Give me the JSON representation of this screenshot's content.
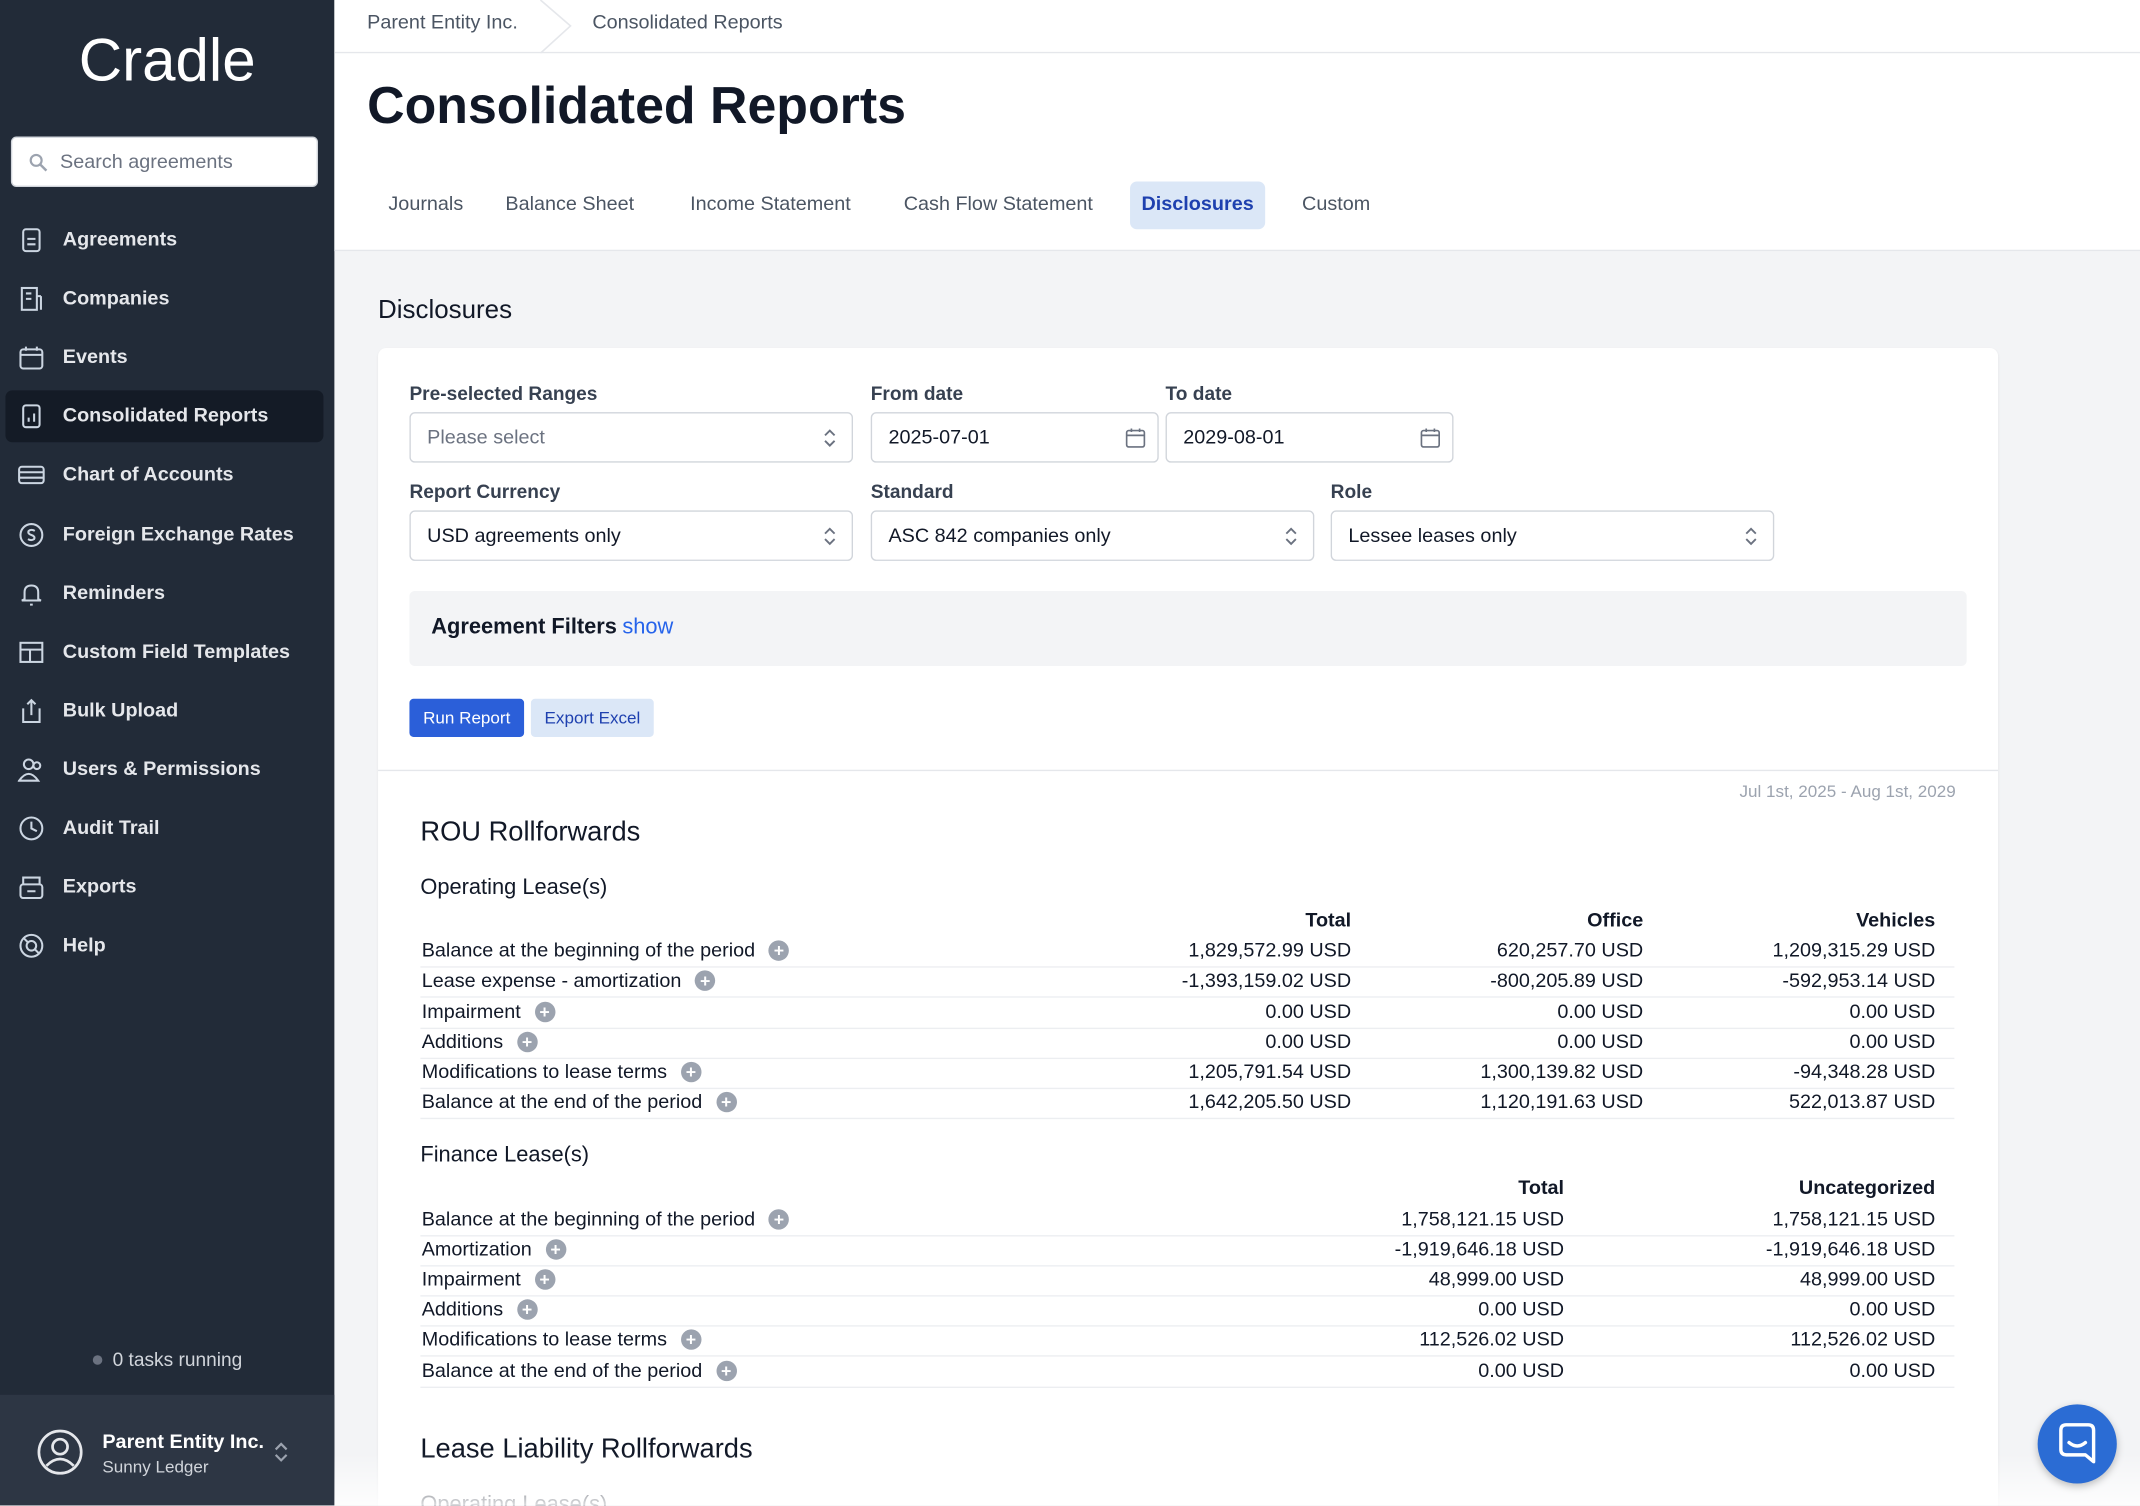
{
  "sidebar": {
    "brand": "Cradle",
    "search_placeholder": "Search agreements",
    "nav": [
      "Agreements",
      "Companies",
      "Events",
      "Consolidated Reports",
      "Chart of Accounts",
      "Foreign Exchange Rates",
      "Reminders",
      "Custom Field Templates",
      "Bulk Upload",
      "Users & Permissions",
      "Audit Trail",
      "Exports",
      "Help"
    ],
    "active_nav": 3,
    "tasks": "0 tasks running",
    "user": {
      "name": "Parent Entity Inc.",
      "subtitle": "Sunny Ledger"
    }
  },
  "breadcrumb": [
    "Parent Entity Inc.",
    "Consolidated Reports"
  ],
  "title": "Consolidated Reports",
  "tabs": [
    "Journals",
    "Balance Sheet",
    "Income Statement",
    "Cash Flow Statement",
    "Disclosures",
    "Custom"
  ],
  "active_tab": 4,
  "section_title": "Disclosures",
  "form": {
    "fields": [
      {
        "label": "Pre-selected Ranges",
        "value": "Please select",
        "kind": "select"
      },
      {
        "label": "From date",
        "value": "2025-07-01",
        "kind": "date"
      },
      {
        "label": "To date",
        "value": "2029-08-01",
        "kind": "date"
      },
      {
        "label": "Report Currency",
        "value": "USD agreements only",
        "kind": "select"
      },
      {
        "label": "Standard",
        "value": "ASC 842 companies only",
        "kind": "select"
      },
      {
        "label": "Role",
        "value": "Lessee leases only",
        "kind": "select"
      }
    ]
  },
  "filters": {
    "title": "Agreement Filters",
    "link": "show"
  },
  "buttons": [
    "Run Report",
    "Export Excel"
  ],
  "report": {
    "date_range": "Jul 1st, 2025 - Aug 1st, 2029",
    "sections": [
      {
        "title": "ROU Rollforwards",
        "tables": [
          {
            "title": "Operating Lease(s)",
            "columns": [
              "Total",
              "Office",
              "Vehicles"
            ],
            "rows": [
              {
                "label": "Balance at the beginning of the period",
                "values": [
                  "1,829,572.99 USD",
                  "620,257.70 USD",
                  "1,209,315.29 USD"
                ]
              },
              {
                "label": "Lease expense - amortization",
                "values": [
                  "-1,393,159.02 USD",
                  "-800,205.89 USD",
                  "-592,953.14 USD"
                ]
              },
              {
                "label": "Impairment",
                "values": [
                  "0.00 USD",
                  "0.00 USD",
                  "0.00 USD"
                ]
              },
              {
                "label": "Additions",
                "values": [
                  "0.00 USD",
                  "0.00 USD",
                  "0.00 USD"
                ]
              },
              {
                "label": "Modifications to lease terms",
                "values": [
                  "1,205,791.54 USD",
                  "1,300,139.82 USD",
                  "-94,348.28 USD"
                ]
              },
              {
                "label": "Balance at the end of the period",
                "values": [
                  "1,642,205.50 USD",
                  "1,120,191.63 USD",
                  "522,013.87 USD"
                ]
              }
            ]
          },
          {
            "title": "Finance Lease(s)",
            "columns": [
              "Total",
              "Uncategorized"
            ],
            "rows": [
              {
                "label": "Balance at the beginning of the period",
                "values": [
                  "1,758,121.15 USD",
                  "1,758,121.15 USD"
                ]
              },
              {
                "label": "Amortization",
                "values": [
                  "-1,919,646.18 USD",
                  "-1,919,646.18 USD"
                ]
              },
              {
                "label": "Impairment",
                "values": [
                  "48,999.00 USD",
                  "48,999.00 USD"
                ]
              },
              {
                "label": "Additions",
                "values": [
                  "0.00 USD",
                  "0.00 USD"
                ]
              },
              {
                "label": "Modifications to lease terms",
                "values": [
                  "112,526.02 USD",
                  "112,526.02 USD"
                ]
              },
              {
                "label": "Balance at the end of the period",
                "values": [
                  "0.00 USD",
                  "0.00 USD"
                ]
              }
            ]
          }
        ]
      },
      {
        "title": "Lease Liability Rollforwards",
        "tables": [
          {
            "title": "Operating Lease(s)",
            "columns": [],
            "rows": []
          }
        ]
      }
    ]
  }
}
